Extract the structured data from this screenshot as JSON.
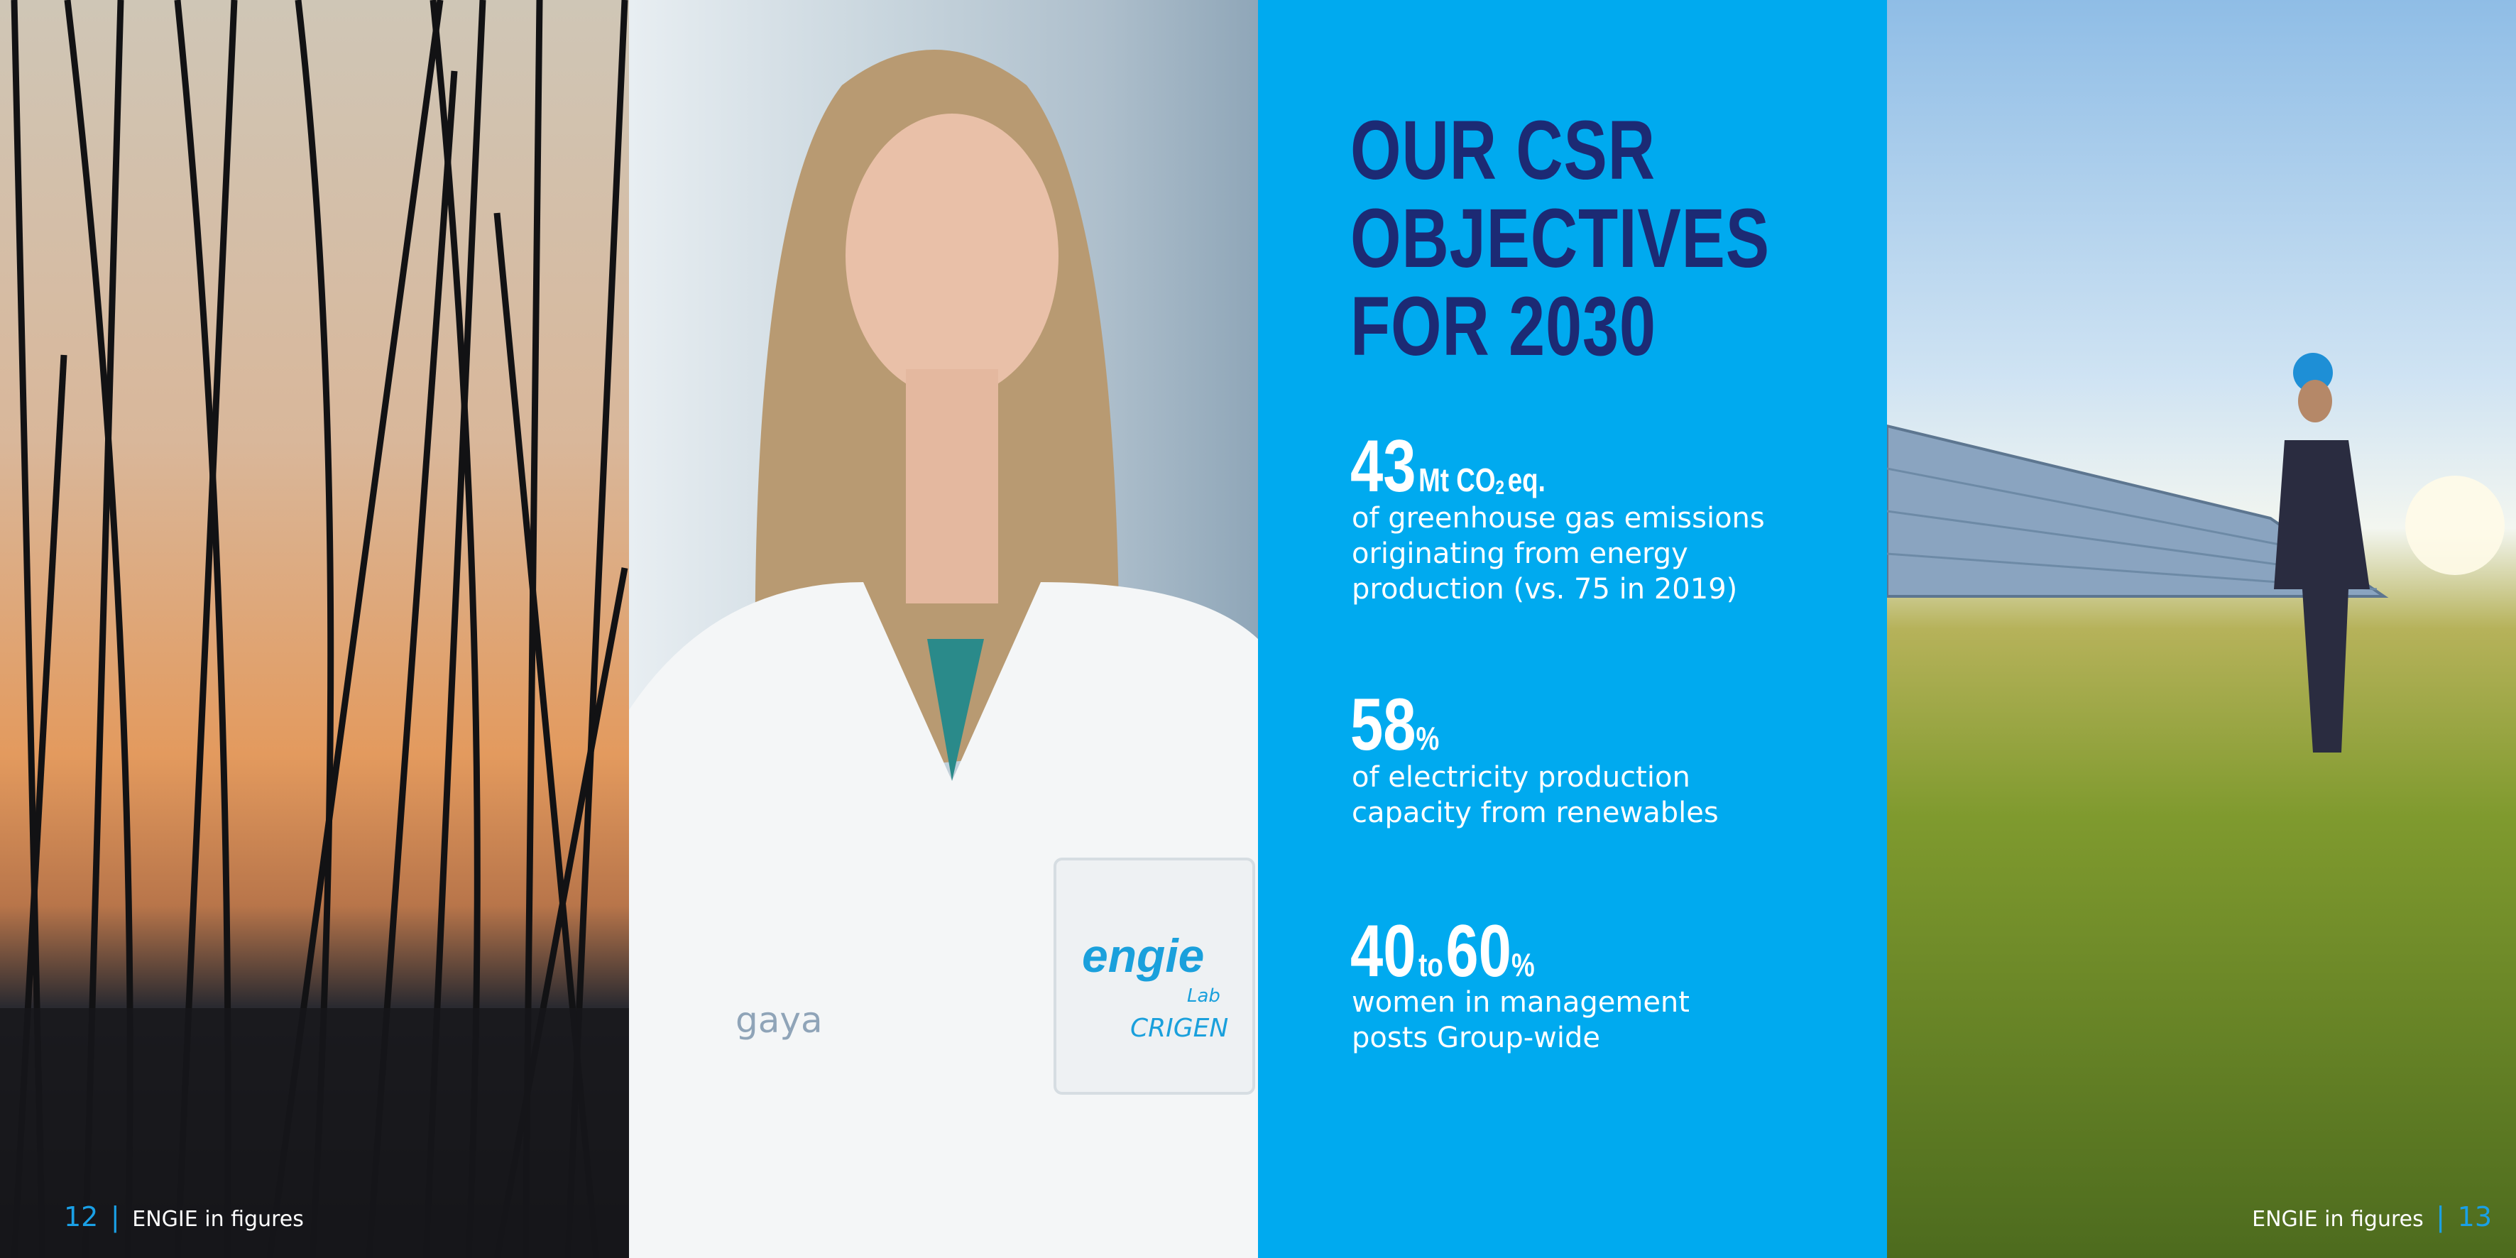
{
  "title": [
    "OUR CSR",
    "OBJECTIVES",
    "FOR 2030"
  ],
  "objectives": [
    {
      "figure": "43",
      "unit": "Mt CO",
      "unit_sub": "2",
      "unit_tail": "eq.",
      "text": [
        "of greenhouse gas emissions",
        "originating from energy",
        "production (vs. 75 in 2019)"
      ]
    },
    {
      "figure": "58",
      "unit": "%",
      "text": [
        "of electricity production",
        "capacity from renewables"
      ]
    },
    {
      "figure": "40",
      "connector": "to",
      "figure2": "60",
      "unit": "%",
      "text": [
        "women in management",
        "posts Group-wide"
      ]
    }
  ],
  "photo_labels": {
    "brand": "engie",
    "lab": "Lab",
    "site": "CRIGEN",
    "sleeve": "gaya"
  },
  "footer_left": {
    "page": "12",
    "separator": "|",
    "section": "ENGIE in figures"
  },
  "footer_right": {
    "page": "13",
    "separator": "|",
    "section": "ENGIE in figures"
  }
}
